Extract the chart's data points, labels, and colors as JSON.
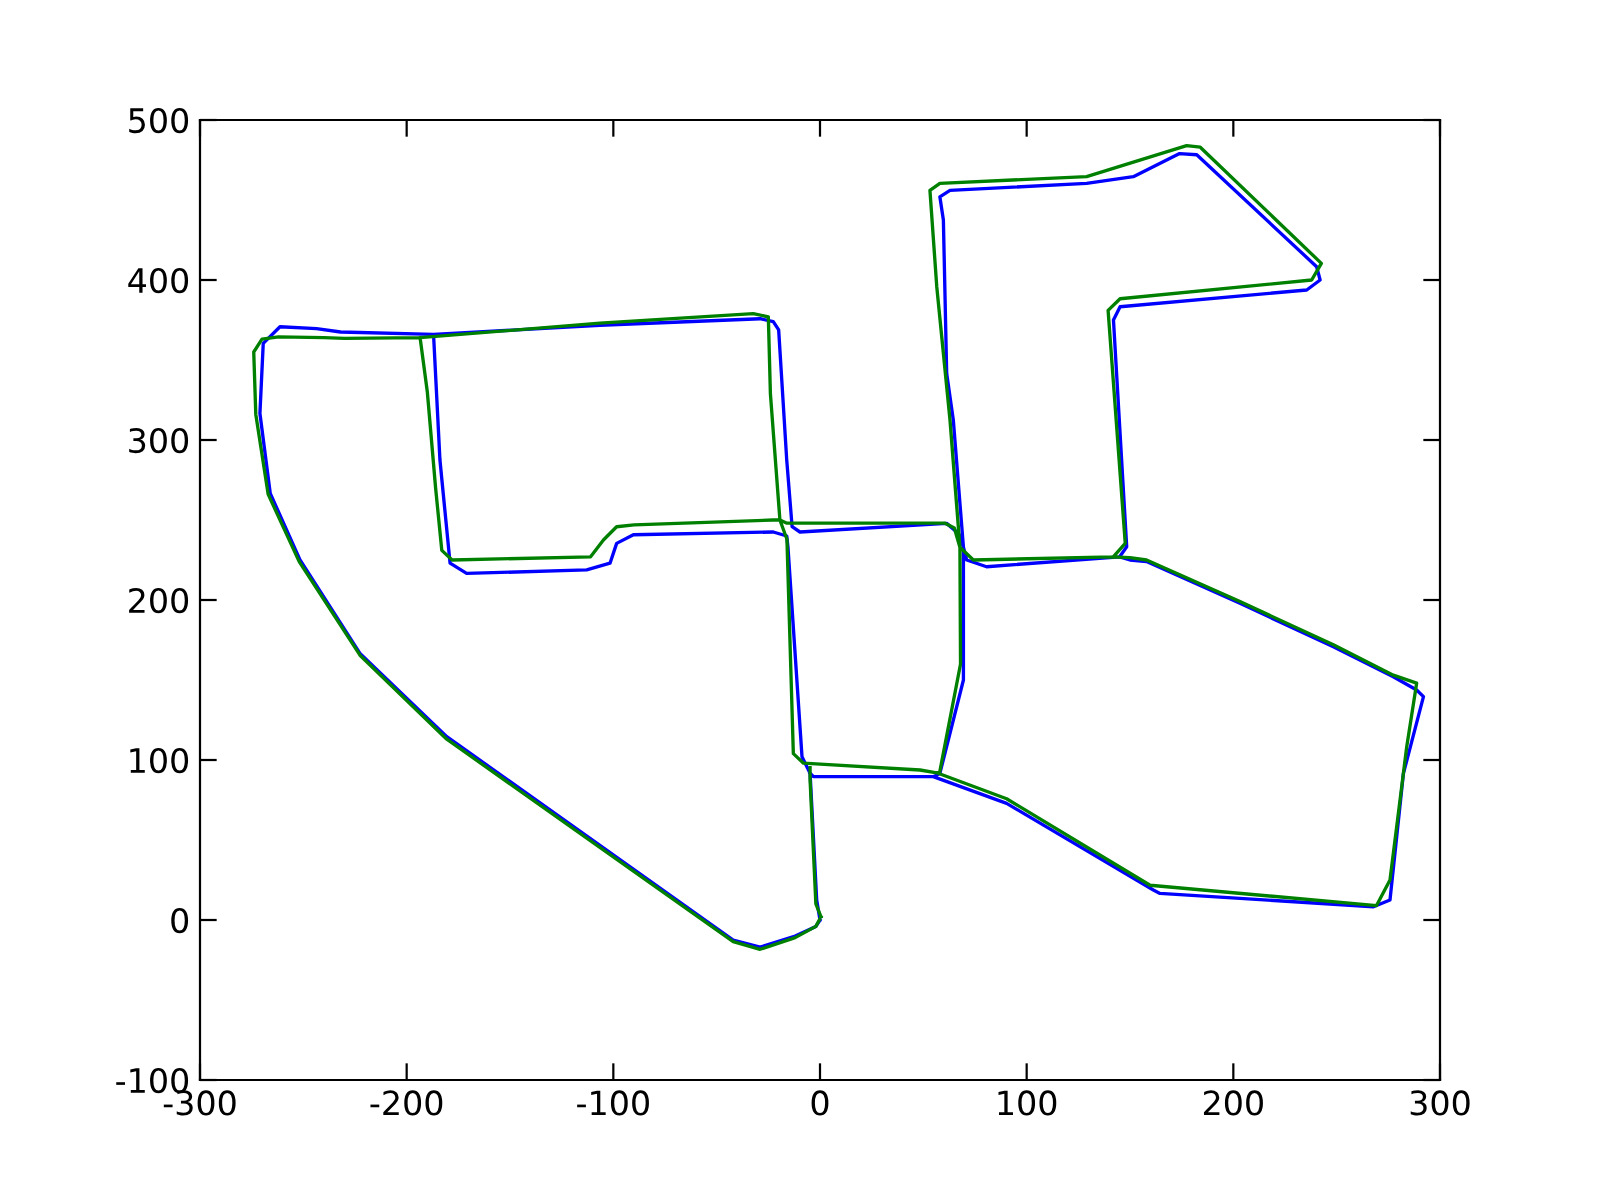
{
  "chart_data": {
    "type": "line",
    "xlim": [
      -300,
      300
    ],
    "ylim": [
      -100,
      500
    ],
    "xticks": [
      -300,
      -200,
      -100,
      0,
      100,
      200,
      300
    ],
    "yticks": [
      -100,
      0,
      100,
      200,
      300,
      400,
      500
    ],
    "grid": false,
    "legend": false,
    "marker": "none",
    "line_style": "solid",
    "series": [
      {
        "color": "#0000ff",
        "x": [
          0,
          -2,
          -12,
          -29,
          -42,
          -180.6,
          -222.6,
          -251.6,
          -266,
          -271,
          -269.4,
          -261.3,
          -243.6,
          -232,
          -187,
          -106.5,
          -29,
          -22.6,
          -20,
          -16.1,
          -13.5,
          -9.7,
          61.3,
          67,
          69.4,
          69.4,
          58,
          54.8,
          90.3,
          161.3,
          164.5,
          267.8,
          275.8,
          282.3,
          292,
          288.7,
          277.4,
          248.4,
          203.2,
          158,
          150,
          145,
          80.6,
          71,
          69.4,
          64.5,
          61.3,
          59.7,
          58,
          62.9,
          129,
          151.6,
          174,
          182.3,
          240.3,
          242,
          235.5,
          145.2,
          142,
          148.4,
          145,
          null,
          -187,
          -183.9,
          -179,
          -171,
          -112.9,
          -101.6,
          -98.4,
          -90.3,
          -22.6,
          -16.1,
          -15.5,
          -8.7,
          -4.8,
          -1.6,
          0,
          null,
          -4.8,
          -3.2,
          54.8
        ],
        "values": [
          0,
          -4,
          -10,
          -17,
          -12.5,
          114.6,
          166.6,
          225,
          266.6,
          316.6,
          360.4,
          370.8,
          369.6,
          367.5,
          366,
          371.7,
          375.8,
          374,
          368.8,
          287.5,
          245.8,
          242.5,
          247.9,
          241.6,
          233,
          150,
          91.6,
          89.6,
          72.9,
          18.75,
          16.6,
          8.3,
          12.5,
          91.6,
          139.6,
          143.75,
          152,
          170.8,
          197.9,
          224,
          225,
          227,
          220.8,
          225,
          233,
          312.5,
          341.6,
          437.5,
          452,
          456,
          460.4,
          464.6,
          479,
          478.3,
          408.3,
          400,
          393.75,
          383.3,
          375,
          233.3,
          227,
          null,
          366,
          287.5,
          223,
          216.6,
          218.8,
          223,
          235.4,
          240.8,
          242.5,
          240,
          233,
          102,
          91.7,
          12.5,
          0,
          null,
          91.7,
          89.6,
          89.6
        ]
      },
      {
        "color": "#008000",
        "x": [
          0.5,
          -2,
          -12,
          -29,
          -42,
          -180.6,
          -222.6,
          -252,
          -267,
          -273,
          -274,
          -270,
          -262,
          -240,
          -230,
          -193.5,
          -106.5,
          -32.3,
          -25,
          -24,
          -19.4,
          -16,
          60.5,
          65,
          67.7,
          68,
          58,
          56.5,
          90.3,
          159.7,
          269.3,
          275.8,
          283.9,
          288.7,
          277.4,
          248.4,
          203.2,
          158,
          150,
          141.9,
          74.2,
          67.7,
          62.9,
          56.5,
          53.2,
          58,
          129,
          177.4,
          184,
          242.6,
          237.9,
          145.2,
          139.4,
          147.7,
          141.9,
          null,
          -193.5,
          -190,
          -186,
          -183,
          -178,
          -111,
          -104.8,
          -98.4,
          -90,
          -22.6,
          -19.4,
          -16,
          -12.9,
          -8,
          48.4,
          56.5,
          null,
          -4.8,
          -4.8,
          -2,
          0.5
        ],
        "values": [
          2,
          -4,
          -11,
          -18.3,
          -13.5,
          113,
          165.5,
          224,
          266,
          316,
          355,
          363,
          364.5,
          364,
          363.5,
          364,
          373,
          379,
          377,
          329,
          250,
          248,
          248,
          245,
          233,
          160,
          93,
          92,
          75.8,
          21.7,
          9,
          25,
          108.3,
          148,
          153,
          172,
          199,
          225,
          226.5,
          227,
          225,
          233,
          312.5,
          395.8,
          456,
          460.4,
          464.6,
          484,
          483,
          410.4,
          400,
          388.3,
          381,
          235.4,
          227,
          null,
          364,
          330,
          270,
          231,
          225,
          227,
          237.5,
          245.8,
          247,
          250,
          250,
          238,
          104,
          98,
          93.75,
          92,
          null,
          97,
          87.5,
          10,
          2
        ]
      }
    ]
  }
}
